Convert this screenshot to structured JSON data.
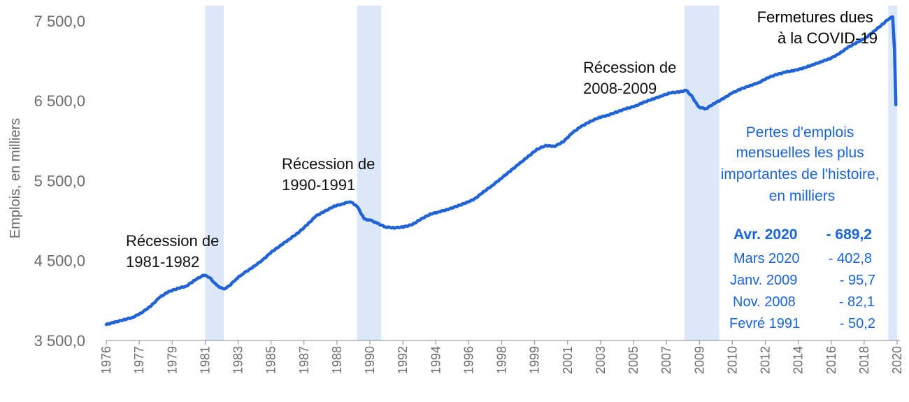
{
  "chart_data": {
    "type": "line",
    "ylabel": "Emplois, en milliers",
    "ylim": [
      3500,
      7700
    ],
    "yticks": [
      "3 500,0",
      "4 500,0",
      "5 500,0",
      "6 500,0",
      "7 500,0"
    ],
    "ytick_values": [
      3500,
      4500,
      5500,
      6500,
      7500
    ],
    "xlim": [
      1976.0,
      2020.45
    ],
    "xticks": [
      "1976",
      "1977",
      "1979",
      "1981",
      "1983",
      "1985",
      "1987",
      "1988",
      "1990",
      "1992",
      "1994",
      "1996",
      "1998",
      "1999",
      "2001",
      "2003",
      "2005",
      "2007",
      "2009",
      "2010",
      "2012",
      "2014",
      "2016",
      "2018",
      "2020"
    ],
    "grid": false,
    "line_color": "#1f63d6",
    "shade_color": "#dce8fa",
    "recessions": [
      {
        "start": 1981.55,
        "end": 1982.6
      },
      {
        "start": 1990.1,
        "end": 1991.45
      },
      {
        "start": 2008.5,
        "end": 2010.45
      },
      {
        "start": 2019.95,
        "end": 2020.45
      }
    ],
    "series": [
      {
        "values": [
          [
            1976.0,
            3700
          ],
          [
            1976.5,
            3730
          ],
          [
            1977.0,
            3760
          ],
          [
            1977.5,
            3790
          ],
          [
            1978.0,
            3850
          ],
          [
            1978.5,
            3930
          ],
          [
            1979.0,
            4040
          ],
          [
            1979.5,
            4110
          ],
          [
            1980.0,
            4150
          ],
          [
            1980.5,
            4180
          ],
          [
            1981.0,
            4260
          ],
          [
            1981.5,
            4320
          ],
          [
            1981.8,
            4290
          ],
          [
            1982.2,
            4190
          ],
          [
            1982.6,
            4140
          ],
          [
            1982.9,
            4180
          ],
          [
            1983.3,
            4270
          ],
          [
            1983.7,
            4340
          ],
          [
            1984.2,
            4410
          ],
          [
            1984.8,
            4510
          ],
          [
            1985.3,
            4610
          ],
          [
            1985.8,
            4690
          ],
          [
            1986.3,
            4770
          ],
          [
            1986.8,
            4850
          ],
          [
            1987.3,
            4950
          ],
          [
            1987.8,
            5060
          ],
          [
            1988.3,
            5120
          ],
          [
            1988.8,
            5180
          ],
          [
            1989.3,
            5210
          ],
          [
            1989.7,
            5240
          ],
          [
            1990.1,
            5180
          ],
          [
            1990.5,
            5020
          ],
          [
            1990.9,
            5000
          ],
          [
            1991.3,
            4960
          ],
          [
            1991.7,
            4920
          ],
          [
            1992.2,
            4910
          ],
          [
            1992.7,
            4920
          ],
          [
            1993.2,
            4950
          ],
          [
            1993.7,
            5020
          ],
          [
            1994.2,
            5080
          ],
          [
            1994.7,
            5110
          ],
          [
            1995.2,
            5140
          ],
          [
            1995.7,
            5180
          ],
          [
            1996.2,
            5220
          ],
          [
            1996.7,
            5270
          ],
          [
            1997.2,
            5360
          ],
          [
            1997.7,
            5440
          ],
          [
            1998.2,
            5530
          ],
          [
            1998.7,
            5620
          ],
          [
            1999.2,
            5710
          ],
          [
            1999.7,
            5800
          ],
          [
            2000.2,
            5890
          ],
          [
            2000.7,
            5940
          ],
          [
            2001.2,
            5930
          ],
          [
            2001.7,
            5990
          ],
          [
            2002.2,
            6100
          ],
          [
            2002.7,
            6180
          ],
          [
            2003.2,
            6240
          ],
          [
            2003.7,
            6290
          ],
          [
            2004.2,
            6320
          ],
          [
            2004.7,
            6360
          ],
          [
            2005.2,
            6400
          ],
          [
            2005.7,
            6430
          ],
          [
            2006.2,
            6480
          ],
          [
            2006.7,
            6520
          ],
          [
            2007.2,
            6560
          ],
          [
            2007.7,
            6600
          ],
          [
            2008.2,
            6610
          ],
          [
            2008.6,
            6630
          ],
          [
            2008.9,
            6560
          ],
          [
            2009.3,
            6420
          ],
          [
            2009.7,
            6400
          ],
          [
            2010.2,
            6470
          ],
          [
            2010.7,
            6530
          ],
          [
            2011.2,
            6600
          ],
          [
            2011.7,
            6650
          ],
          [
            2012.2,
            6690
          ],
          [
            2012.7,
            6730
          ],
          [
            2013.2,
            6790
          ],
          [
            2013.7,
            6830
          ],
          [
            2014.2,
            6860
          ],
          [
            2014.7,
            6880
          ],
          [
            2015.2,
            6910
          ],
          [
            2015.7,
            6950
          ],
          [
            2016.2,
            6990
          ],
          [
            2016.7,
            7030
          ],
          [
            2017.2,
            7090
          ],
          [
            2017.7,
            7170
          ],
          [
            2018.2,
            7230
          ],
          [
            2018.7,
            7290
          ],
          [
            2019.2,
            7380
          ],
          [
            2019.7,
            7470
          ],
          [
            2020.05,
            7540
          ],
          [
            2020.2,
            7550
          ],
          [
            2020.3,
            7150
          ],
          [
            2020.38,
            6450
          ]
        ]
      }
    ],
    "annotations": [
      {
        "id": "rec-1981",
        "lines": [
          "Récession de",
          "1981-1982"
        ]
      },
      {
        "id": "rec-1990",
        "lines": [
          "Récession de",
          "1990-1991"
        ]
      },
      {
        "id": "rec-2008",
        "lines": [
          "Récession de",
          "2008-2009"
        ]
      },
      {
        "id": "covid",
        "lines": [
          "Fermetures dues",
          "à la COVID-19"
        ]
      }
    ],
    "losses_panel": {
      "title_lines": [
        "Pertes d'emplois",
        "mensuelles les plus",
        "importantes de l'histoire,",
        "en milliers"
      ],
      "rows": [
        {
          "period": "Avr. 2020",
          "value": "- 689,2"
        },
        {
          "period": "Mars 2020",
          "value": "- 402,8"
        },
        {
          "period": "Janv. 2009",
          "value": "- 95,7"
        },
        {
          "period": "Nov. 2008",
          "value": "- 82,1"
        },
        {
          "period": "Fevré 1991",
          "value": "- 50,2"
        }
      ]
    }
  }
}
